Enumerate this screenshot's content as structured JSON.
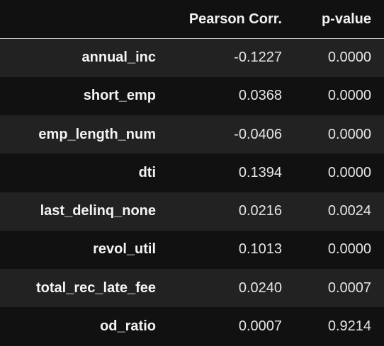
{
  "table": {
    "index_header": "",
    "columns": [
      "Pearson Corr.",
      "p-value"
    ],
    "rows": [
      {
        "label": "annual_inc",
        "values": [
          "-0.1227",
          "0.0000"
        ]
      },
      {
        "label": "short_emp",
        "values": [
          "0.0368",
          "0.0000"
        ]
      },
      {
        "label": "emp_length_num",
        "values": [
          "-0.0406",
          "0.0000"
        ]
      },
      {
        "label": "dti",
        "values": [
          "0.1394",
          "0.0000"
        ]
      },
      {
        "label": "last_delinq_none",
        "values": [
          "0.0216",
          "0.0024"
        ]
      },
      {
        "label": "revol_util",
        "values": [
          "0.1013",
          "0.0000"
        ]
      },
      {
        "label": "total_rec_late_fee",
        "values": [
          "0.0240",
          "0.0007"
        ]
      },
      {
        "label": "od_ratio",
        "values": [
          "0.0007",
          "0.9214"
        ]
      }
    ]
  },
  "colors": {
    "background": "#111111",
    "row_striped": "#222222",
    "text": "#e6e6e6",
    "header_rule": "#cfcfcf"
  }
}
